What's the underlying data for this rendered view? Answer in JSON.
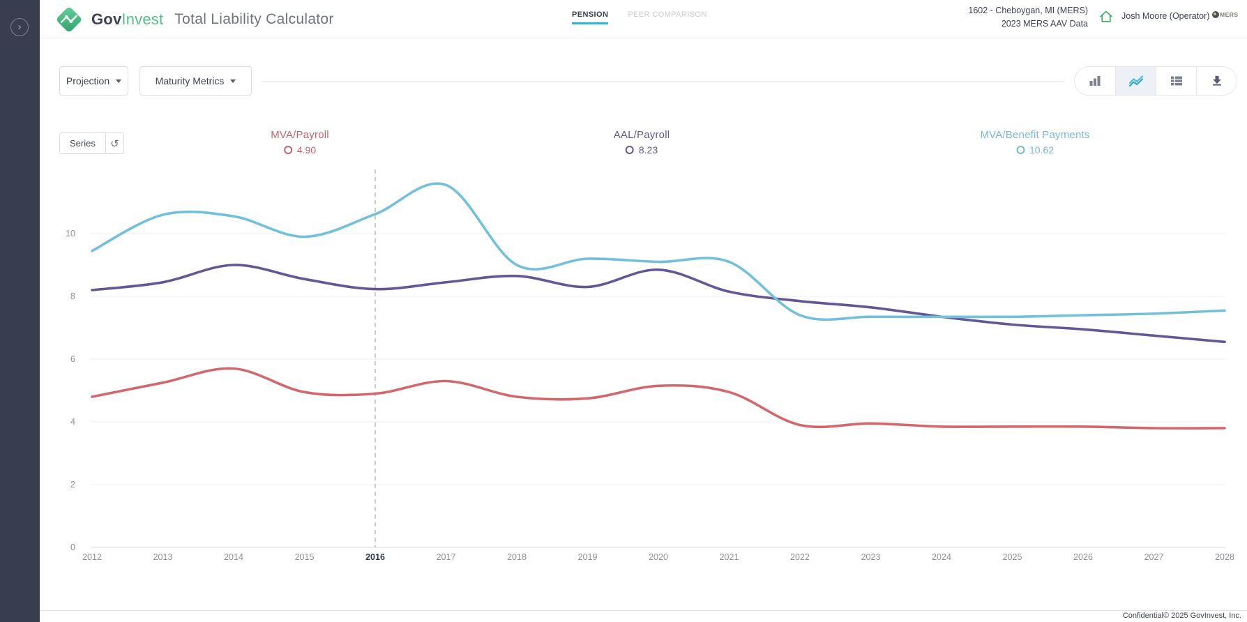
{
  "sidebar": {
    "expand_icon": "›"
  },
  "header": {
    "brand_gov": "Gov",
    "brand_invest": "Invest",
    "app_title": "Total Liability Calculator",
    "tabs": [
      {
        "label": "PENSION",
        "active": true
      },
      {
        "label": "PEER COMPARISON",
        "active": false
      }
    ],
    "plan_line1": "1602 - Cheboygan, MI (MERS)",
    "plan_line2": "2023 MERS AAV Data",
    "user": "Josh Moore (Operator)",
    "mers_label": "MERS"
  },
  "toolbar": {
    "projection_label": "Projection",
    "maturity_label": "Maturity Metrics",
    "series_label": "Series",
    "view_buttons": [
      {
        "name": "bar-chart",
        "active": false
      },
      {
        "name": "line-chart",
        "active": true
      },
      {
        "name": "data-table",
        "active": false
      },
      {
        "name": "download",
        "active": false
      }
    ]
  },
  "legend": [
    {
      "label": "MVA/Payroll",
      "value": "4.90",
      "color": "#c5646c"
    },
    {
      "label": "AAL/Payroll",
      "value": "8.23",
      "color": "#655795"
    },
    {
      "label": "MVA/Benefit Payments",
      "value": "10.62",
      "color": "#79b7d7"
    }
  ],
  "chart_data": {
    "type": "line",
    "x": [
      2012,
      2013,
      2014,
      2015,
      2016,
      2017,
      2018,
      2019,
      2020,
      2021,
      2022,
      2023,
      2024,
      2025,
      2026,
      2027,
      2028
    ],
    "series": [
      {
        "name": "MVA/Payroll",
        "color": "#d2686d",
        "values": [
          4.8,
          5.25,
          5.7,
          4.95,
          4.9,
          5.3,
          4.8,
          4.75,
          5.15,
          4.95,
          3.9,
          3.95,
          3.85,
          3.85,
          3.85,
          3.8,
          3.8
        ]
      },
      {
        "name": "AAL/Payroll",
        "color": "#655795",
        "values": [
          8.2,
          8.45,
          9.0,
          8.55,
          8.23,
          8.45,
          8.65,
          8.3,
          8.85,
          8.15,
          7.85,
          7.65,
          7.35,
          7.1,
          6.95,
          6.75,
          6.55
        ]
      },
      {
        "name": "MVA/Benefit Payments",
        "color": "#72c0db",
        "values": [
          9.45,
          10.6,
          10.55,
          9.9,
          10.62,
          11.55,
          9.0,
          9.2,
          9.1,
          9.1,
          7.4,
          7.35,
          7.35,
          7.35,
          7.4,
          7.45,
          7.55
        ]
      }
    ],
    "ylim": [
      0,
      12
    ],
    "yticks": [
      0,
      2,
      4,
      6,
      8,
      10
    ],
    "marker_year": 2016,
    "grid": true,
    "legend_position": "top"
  },
  "footer": {
    "confidential": "Confidential© 2025 GovInvest, Inc."
  }
}
